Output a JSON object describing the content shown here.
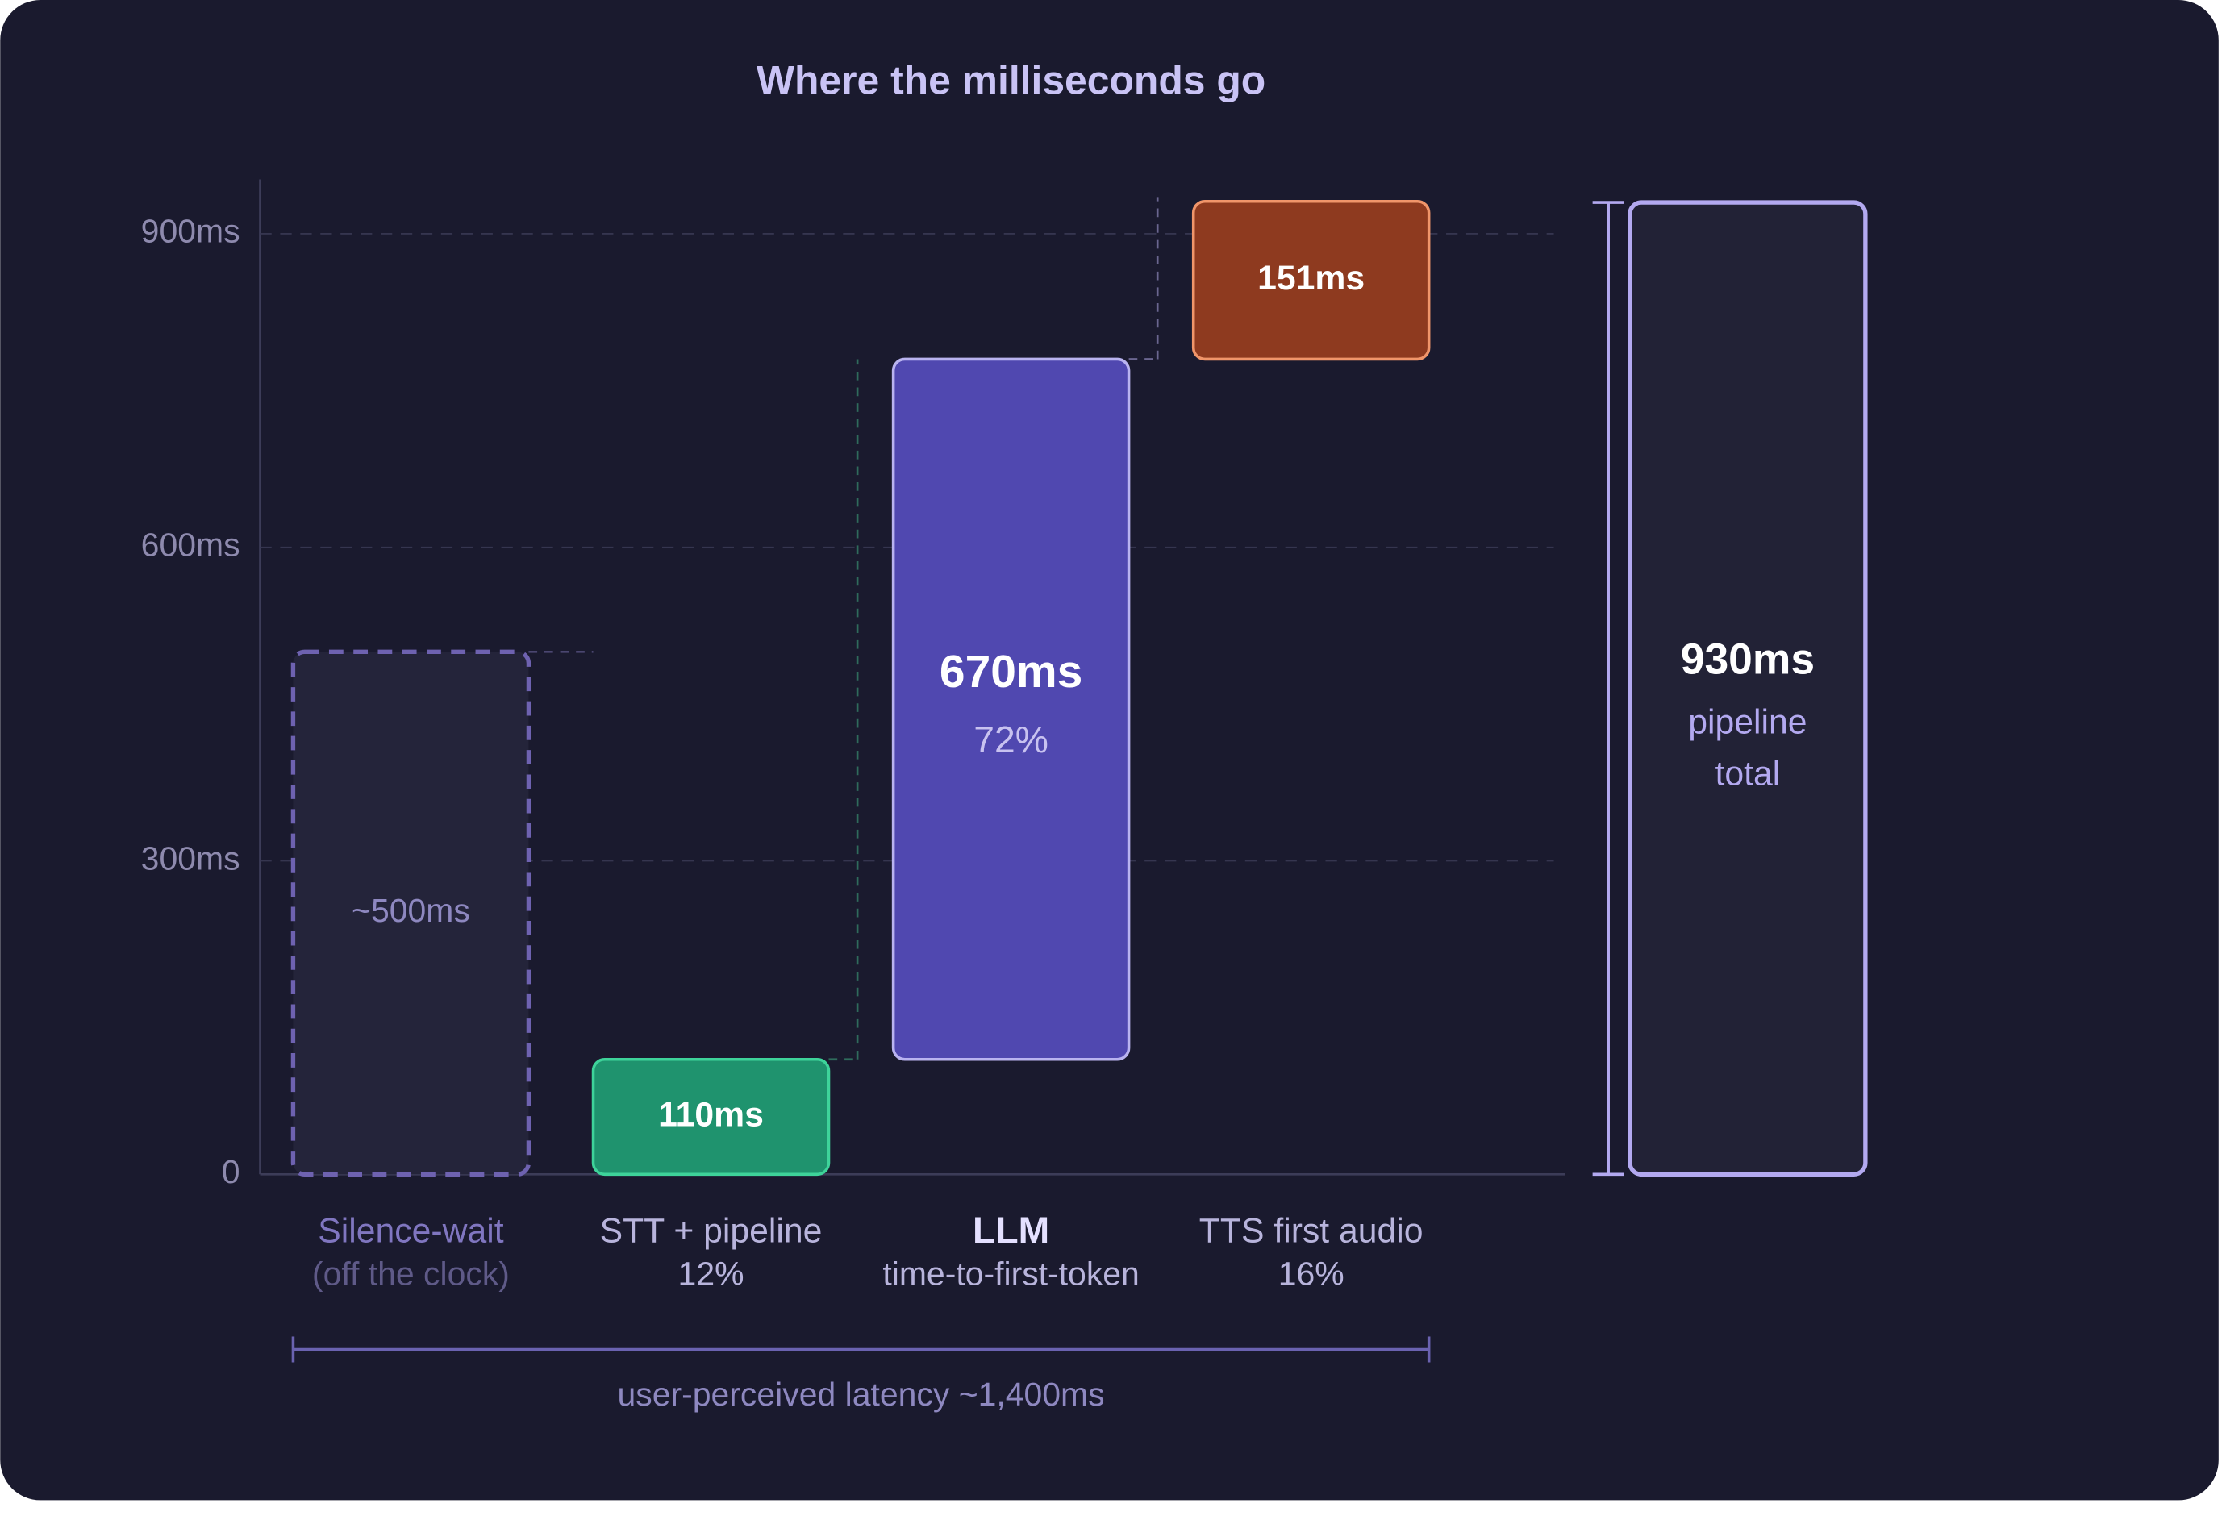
{
  "chart_data": {
    "type": "waterfall",
    "title": "Where the milliseconds go",
    "categories": [
      "Silence-wait",
      "STT + pipeline",
      "LLM",
      "TTS first audio"
    ],
    "sublabels": [
      "(off the clock)",
      null,
      "time-to-first-token",
      null
    ],
    "values": [
      500,
      110,
      670,
      151
    ],
    "value_labels": [
      "~500ms",
      "110ms",
      "670ms",
      "151ms"
    ],
    "shares": [
      null,
      12,
      72,
      16
    ],
    "share_labels": [
      null,
      "12%",
      "72%",
      "16%"
    ],
    "styles": [
      "dashed",
      "solid",
      "solid",
      "solid"
    ],
    "colors": [
      "#24243a",
      "#1f936e",
      "#5048b0",
      "#8e3a1f"
    ],
    "stroke_colors": [
      "#6e62b0",
      "#3ed39a",
      "#b9b3f0",
      "#f0956a"
    ],
    "total": {
      "value": 930,
      "label": "930ms",
      "caption": [
        "pipeline",
        "total"
      ],
      "color": "#222236",
      "stroke_color": "#b3a9f0"
    },
    "annotation": "user-perceived latency ~1,400ms",
    "ylim": [
      0,
      952
    ],
    "yticks": [
      0,
      {
        "value": 300,
        "label": "300ms"
      },
      {
        "value": 600,
        "label": "600ms"
      },
      {
        "value": 900,
        "label": "900ms"
      }
    ],
    "grid": true
  }
}
